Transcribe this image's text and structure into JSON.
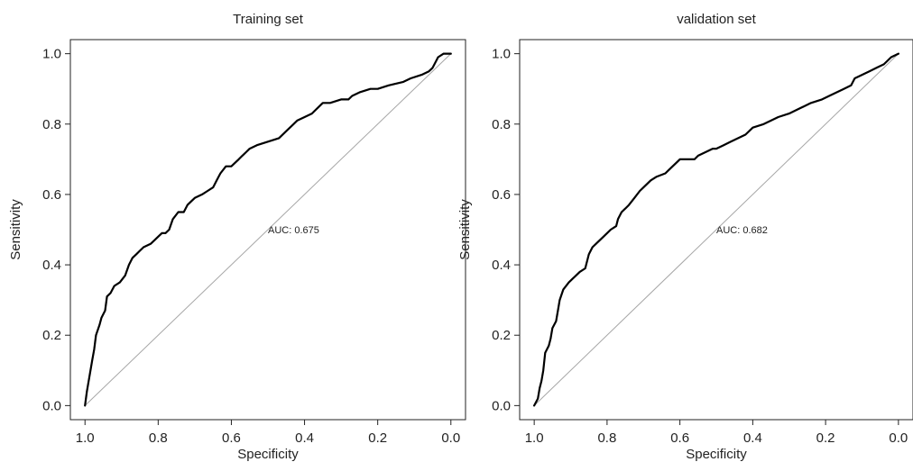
{
  "chart_data": [
    {
      "type": "line",
      "title": "Training set",
      "xlabel": "Specificity",
      "ylabel": "Sensitivity",
      "xlim": [
        1.0,
        0.0
      ],
      "ylim": [
        0.0,
        1.0
      ],
      "x_ticks": [
        "1.0",
        "0.8",
        "0.6",
        "0.4",
        "0.2",
        "0.0"
      ],
      "y_ticks": [
        "0.0",
        "0.2",
        "0.4",
        "0.6",
        "0.8",
        "1.0"
      ],
      "grid": false,
      "legend": "none",
      "annotation": "AUC: 0.675",
      "reference_line": {
        "x": [
          1.0,
          0.0
        ],
        "y": [
          0.0,
          1.0
        ]
      },
      "series": [
        {
          "x": [
            1.0,
            0.995,
            0.99,
            0.985,
            0.98,
            0.975,
            0.97,
            0.96,
            0.955,
            0.945,
            0.94,
            0.93,
            0.92,
            0.905,
            0.89,
            0.88,
            0.87,
            0.86,
            0.85,
            0.84,
            0.82,
            0.81,
            0.8,
            0.79,
            0.78,
            0.77,
            0.76,
            0.745,
            0.73,
            0.72,
            0.71,
            0.7,
            0.68,
            0.665,
            0.65,
            0.64,
            0.63,
            0.615,
            0.6,
            0.58,
            0.57,
            0.56,
            0.55,
            0.53,
            0.5,
            0.47,
            0.45,
            0.43,
            0.42,
            0.4,
            0.38,
            0.36,
            0.35,
            0.33,
            0.3,
            0.28,
            0.27,
            0.25,
            0.22,
            0.2,
            0.17,
            0.13,
            0.11,
            0.08,
            0.06,
            0.05,
            0.04,
            0.035,
            0.02,
            0.0
          ],
          "y": [
            0.0,
            0.04,
            0.07,
            0.1,
            0.13,
            0.16,
            0.2,
            0.23,
            0.25,
            0.27,
            0.31,
            0.32,
            0.34,
            0.35,
            0.37,
            0.4,
            0.42,
            0.43,
            0.44,
            0.45,
            0.46,
            0.47,
            0.48,
            0.49,
            0.49,
            0.5,
            0.53,
            0.55,
            0.55,
            0.57,
            0.58,
            0.59,
            0.6,
            0.61,
            0.62,
            0.64,
            0.66,
            0.68,
            0.68,
            0.7,
            0.71,
            0.72,
            0.73,
            0.74,
            0.75,
            0.76,
            0.78,
            0.8,
            0.81,
            0.82,
            0.83,
            0.85,
            0.86,
            0.86,
            0.87,
            0.87,
            0.88,
            0.89,
            0.9,
            0.9,
            0.91,
            0.92,
            0.93,
            0.94,
            0.95,
            0.96,
            0.98,
            0.99,
            1.0,
            1.0
          ]
        }
      ]
    },
    {
      "type": "line",
      "title": "validation set",
      "xlabel": "Specificity",
      "ylabel": "Sensitivity",
      "xlim": [
        1.0,
        0.0
      ],
      "ylim": [
        0.0,
        1.0
      ],
      "x_ticks": [
        "1.0",
        "0.8",
        "0.6",
        "0.4",
        "0.2",
        "0.0"
      ],
      "y_ticks": [
        "0.0",
        "0.2",
        "0.4",
        "0.6",
        "0.8",
        "1.0"
      ],
      "grid": false,
      "legend": "none",
      "annotation": "AUC: 0.682",
      "reference_line": {
        "x": [
          1.0,
          0.0
        ],
        "y": [
          0.0,
          1.0
        ]
      },
      "series": [
        {
          "x": [
            1.0,
            0.99,
            0.985,
            0.98,
            0.975,
            0.97,
            0.96,
            0.955,
            0.95,
            0.94,
            0.935,
            0.93,
            0.92,
            0.905,
            0.895,
            0.885,
            0.875,
            0.86,
            0.85,
            0.84,
            0.83,
            0.81,
            0.8,
            0.79,
            0.775,
            0.77,
            0.76,
            0.75,
            0.74,
            0.725,
            0.71,
            0.7,
            0.69,
            0.68,
            0.665,
            0.64,
            0.63,
            0.61,
            0.6,
            0.58,
            0.56,
            0.55,
            0.53,
            0.51,
            0.5,
            0.48,
            0.46,
            0.44,
            0.42,
            0.4,
            0.37,
            0.35,
            0.33,
            0.3,
            0.28,
            0.26,
            0.24,
            0.21,
            0.19,
            0.17,
            0.15,
            0.13,
            0.12,
            0.1,
            0.08,
            0.06,
            0.04,
            0.02,
            0.0
          ],
          "y": [
            0.0,
            0.02,
            0.05,
            0.07,
            0.1,
            0.15,
            0.17,
            0.19,
            0.22,
            0.24,
            0.27,
            0.3,
            0.33,
            0.35,
            0.36,
            0.37,
            0.38,
            0.39,
            0.43,
            0.45,
            0.46,
            0.48,
            0.49,
            0.5,
            0.51,
            0.53,
            0.55,
            0.56,
            0.57,
            0.59,
            0.61,
            0.62,
            0.63,
            0.64,
            0.65,
            0.66,
            0.67,
            0.69,
            0.7,
            0.7,
            0.7,
            0.71,
            0.72,
            0.73,
            0.73,
            0.74,
            0.75,
            0.76,
            0.77,
            0.79,
            0.8,
            0.81,
            0.82,
            0.83,
            0.84,
            0.85,
            0.86,
            0.87,
            0.88,
            0.89,
            0.9,
            0.91,
            0.93,
            0.94,
            0.95,
            0.96,
            0.97,
            0.99,
            1.0
          ]
        }
      ]
    }
  ]
}
